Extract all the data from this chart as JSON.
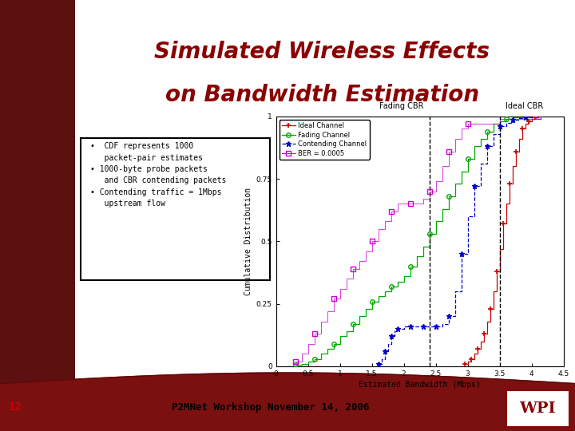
{
  "title_line1": "Simulated Wireless Effects",
  "title_line2": "on Bandwidth Estimation",
  "title_color": "#8B0000",
  "footer_text": "P2MNet Workshop November 14, 2006",
  "slide_number": "12",
  "xlabel": "Estimated Bandwidth (Mbps)",
  "ylabel": "Cumulative Distribution",
  "xlim": [
    0,
    4.5
  ],
  "ylim": [
    0,
    1.0
  ],
  "xticks": [
    0,
    0.5,
    1,
    1.5,
    2,
    2.5,
    3,
    3.5,
    4,
    4.5
  ],
  "yticks": [
    0,
    0.25,
    0.5,
    0.75,
    1
  ],
  "vline1": 2.4,
  "vline2": 3.5,
  "vline1_label": "Fading CBR",
  "vline2_label": "Ideal CBR",
  "ideal_channel_x": [
    2.95,
    3.0,
    3.05,
    3.1,
    3.15,
    3.2,
    3.25,
    3.3,
    3.35,
    3.4,
    3.45,
    3.5,
    3.55,
    3.6,
    3.65,
    3.7,
    3.75,
    3.8,
    3.85,
    3.9,
    3.95,
    4.0,
    4.05,
    4.1
  ],
  "ideal_channel_y": [
    0.01,
    0.02,
    0.03,
    0.05,
    0.07,
    0.1,
    0.13,
    0.18,
    0.23,
    0.3,
    0.38,
    0.47,
    0.57,
    0.65,
    0.73,
    0.8,
    0.86,
    0.91,
    0.95,
    0.97,
    0.98,
    0.99,
    0.995,
    1.0
  ],
  "fading_channel_x": [
    0.3,
    0.4,
    0.5,
    0.6,
    0.7,
    0.8,
    0.9,
    1.0,
    1.1,
    1.2,
    1.3,
    1.4,
    1.5,
    1.6,
    1.7,
    1.8,
    1.9,
    2.0,
    2.1,
    2.2,
    2.3,
    2.4,
    2.5,
    2.6,
    2.7,
    2.8,
    2.9,
    3.0,
    3.1,
    3.2,
    3.3,
    3.4,
    3.5,
    3.6,
    3.7,
    3.8,
    3.9,
    4.0,
    4.1
  ],
  "fading_channel_y": [
    0.005,
    0.01,
    0.02,
    0.03,
    0.05,
    0.07,
    0.09,
    0.12,
    0.14,
    0.17,
    0.2,
    0.23,
    0.26,
    0.28,
    0.3,
    0.32,
    0.34,
    0.36,
    0.4,
    0.44,
    0.48,
    0.53,
    0.58,
    0.63,
    0.68,
    0.73,
    0.78,
    0.83,
    0.88,
    0.91,
    0.94,
    0.97,
    0.98,
    0.99,
    0.995,
    0.997,
    0.999,
    1.0,
    1.0
  ],
  "contending_x": [
    1.6,
    1.65,
    1.7,
    1.75,
    1.8,
    1.85,
    1.9,
    2.0,
    2.1,
    2.2,
    2.3,
    2.4,
    2.5,
    2.6,
    2.7,
    2.8,
    2.9,
    3.0,
    3.1,
    3.2,
    3.3,
    3.4,
    3.5,
    3.6,
    3.7,
    3.8,
    3.9,
    4.0
  ],
  "contending_y": [
    0.01,
    0.03,
    0.06,
    0.09,
    0.12,
    0.14,
    0.15,
    0.16,
    0.16,
    0.16,
    0.16,
    0.16,
    0.16,
    0.17,
    0.2,
    0.3,
    0.45,
    0.6,
    0.72,
    0.81,
    0.88,
    0.93,
    0.96,
    0.975,
    0.985,
    0.992,
    0.997,
    1.0
  ],
  "ber_x": [
    0.3,
    0.4,
    0.5,
    0.6,
    0.7,
    0.8,
    0.9,
    1.0,
    1.1,
    1.2,
    1.3,
    1.4,
    1.5,
    1.6,
    1.7,
    1.8,
    1.9,
    2.0,
    2.1,
    2.2,
    2.3,
    2.4,
    2.5,
    2.6,
    2.7,
    2.8,
    2.9,
    3.0,
    3.5,
    4.0,
    4.1
  ],
  "ber_y": [
    0.02,
    0.05,
    0.09,
    0.13,
    0.18,
    0.22,
    0.27,
    0.31,
    0.35,
    0.39,
    0.42,
    0.46,
    0.5,
    0.55,
    0.58,
    0.62,
    0.65,
    0.65,
    0.65,
    0.65,
    0.67,
    0.7,
    0.74,
    0.8,
    0.86,
    0.91,
    0.95,
    0.97,
    0.99,
    1.0,
    1.0
  ],
  "ideal_color": "#CC0000",
  "fading_color": "#00AA00",
  "contending_color": "#0000CC",
  "ber_color": "#CC00CC",
  "sidebar_color": "#5C1010",
  "bottom_bar_color": "#7B1010",
  "chart_marker_every": 2
}
